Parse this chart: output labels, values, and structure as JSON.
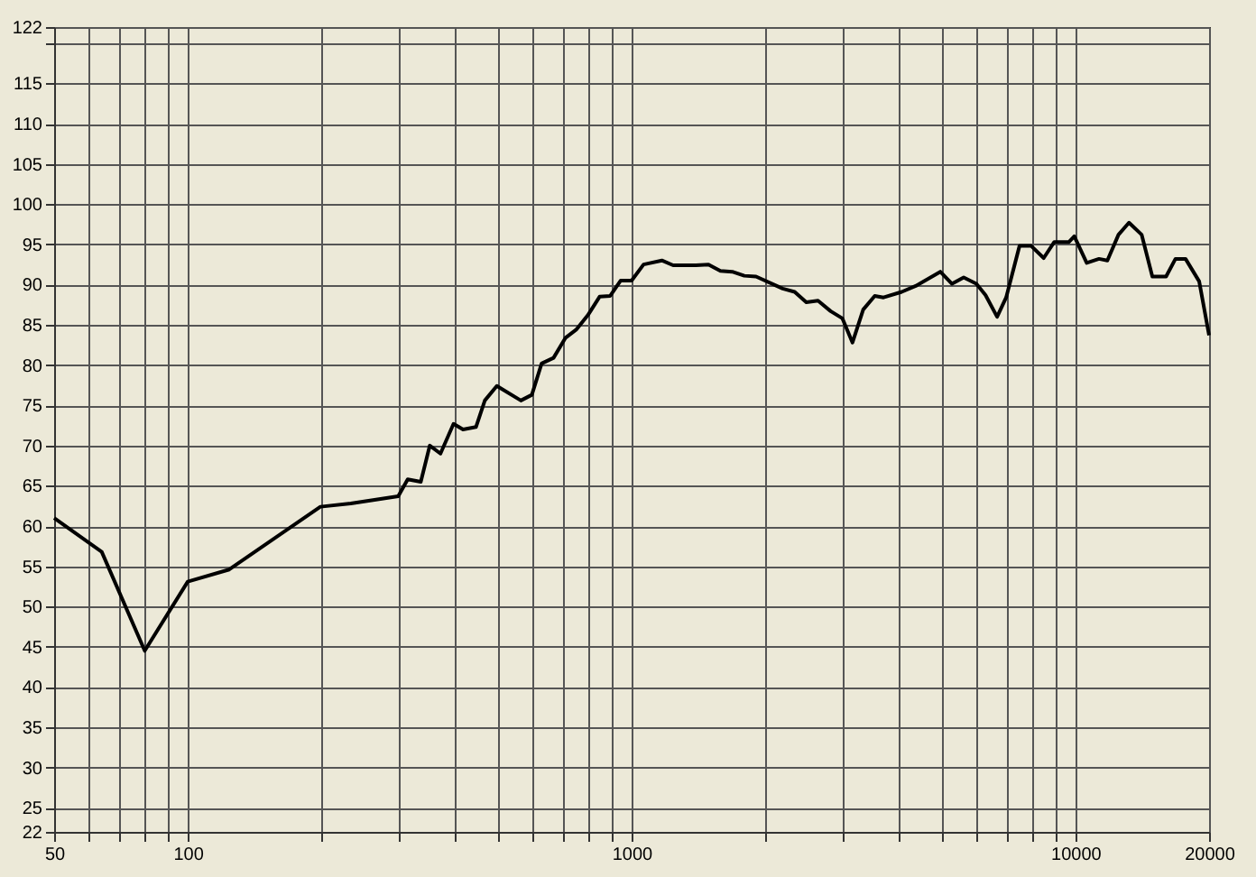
{
  "chart_data": {
    "type": "line",
    "log": "x",
    "x": [
      50,
      64,
      80,
      100,
      124,
      199,
      233,
      298,
      313,
      335,
      351,
      371,
      397,
      417,
      446,
      467,
      497,
      563,
      596,
      627,
      667,
      710,
      750,
      797,
      847,
      895,
      945,
      1000,
      1064,
      1170,
      1240,
      1396,
      1490,
      1585,
      1686,
      1794,
      1907,
      2190,
      2330,
      2475,
      2630,
      2808,
      2985,
      3145,
      3325,
      3530,
      3695,
      4060,
      4390,
      4960,
      5270,
      5600,
      5980,
      6270,
      6660,
      6980,
      7480,
      7950,
      8480,
      8960,
      9670,
      9940,
      10600,
      11300,
      11800,
      12500,
      13200,
      14100,
      14900,
      16000,
      16800,
      17700,
      19000,
      20000
    ],
    "series": [
      {
        "color": "#000000",
        "values": [
          61,
          56.8,
          44.5,
          53.1,
          54.6,
          62.4,
          62.8,
          63.7,
          65.8,
          65.5,
          70,
          69,
          72.7,
          72,
          72.3,
          75.6,
          77.4,
          75.6,
          76.3,
          80.2,
          80.9,
          83.4,
          84.4,
          86.2,
          88.5,
          88.6,
          90.5,
          90.5,
          92.5,
          93,
          92.4,
          92.4,
          92.5,
          91.7,
          91.6,
          91.1,
          91,
          89.5,
          89.1,
          87.8,
          88,
          86.7,
          85.8,
          82.8,
          86.9,
          88.6,
          88.4,
          89.1,
          89.9,
          91.6,
          90.1,
          90.9,
          90.1,
          88.7,
          86,
          88.4,
          94.8,
          94.8,
          93.3,
          95.3,
          95.3,
          96,
          92.7,
          93.2,
          93,
          96.2,
          97.7,
          96.2,
          91,
          91,
          93.2,
          93.2,
          90.4,
          83.7
        ]
      }
    ],
    "xlim": [
      50,
      20000
    ],
    "xticks": [
      50,
      {
        "value": 60,
        "label": null
      },
      {
        "value": 70,
        "label": null
      },
      {
        "value": 80,
        "label": null
      },
      {
        "value": 90,
        "label": null
      },
      100,
      {
        "value": 200,
        "label": null
      },
      {
        "value": 300,
        "label": null
      },
      {
        "value": 400,
        "label": null
      },
      {
        "value": 500,
        "label": null
      },
      {
        "value": 600,
        "label": null
      },
      {
        "value": 700,
        "label": null
      },
      {
        "value": 800,
        "label": null
      },
      {
        "value": 900,
        "label": null
      },
      1000,
      {
        "value": 2000,
        "label": null
      },
      {
        "value": 3000,
        "label": null
      },
      {
        "value": 4000,
        "label": null
      },
      {
        "value": 5000,
        "label": null
      },
      {
        "value": 6000,
        "label": null
      },
      {
        "value": 7000,
        "label": null
      },
      {
        "value": 8000,
        "label": null
      },
      {
        "value": 9000,
        "label": null
      },
      10000,
      20000
    ],
    "ylim": [
      22,
      122
    ],
    "yticks": [
      22,
      25,
      30,
      35,
      40,
      45,
      50,
      55,
      60,
      65,
      70,
      75,
      80,
      85,
      90,
      95,
      100,
      105,
      110,
      115,
      {
        "value": 120,
        "label": null
      },
      122
    ],
    "grid": true,
    "line_style": "solid",
    "marker": "none"
  }
}
